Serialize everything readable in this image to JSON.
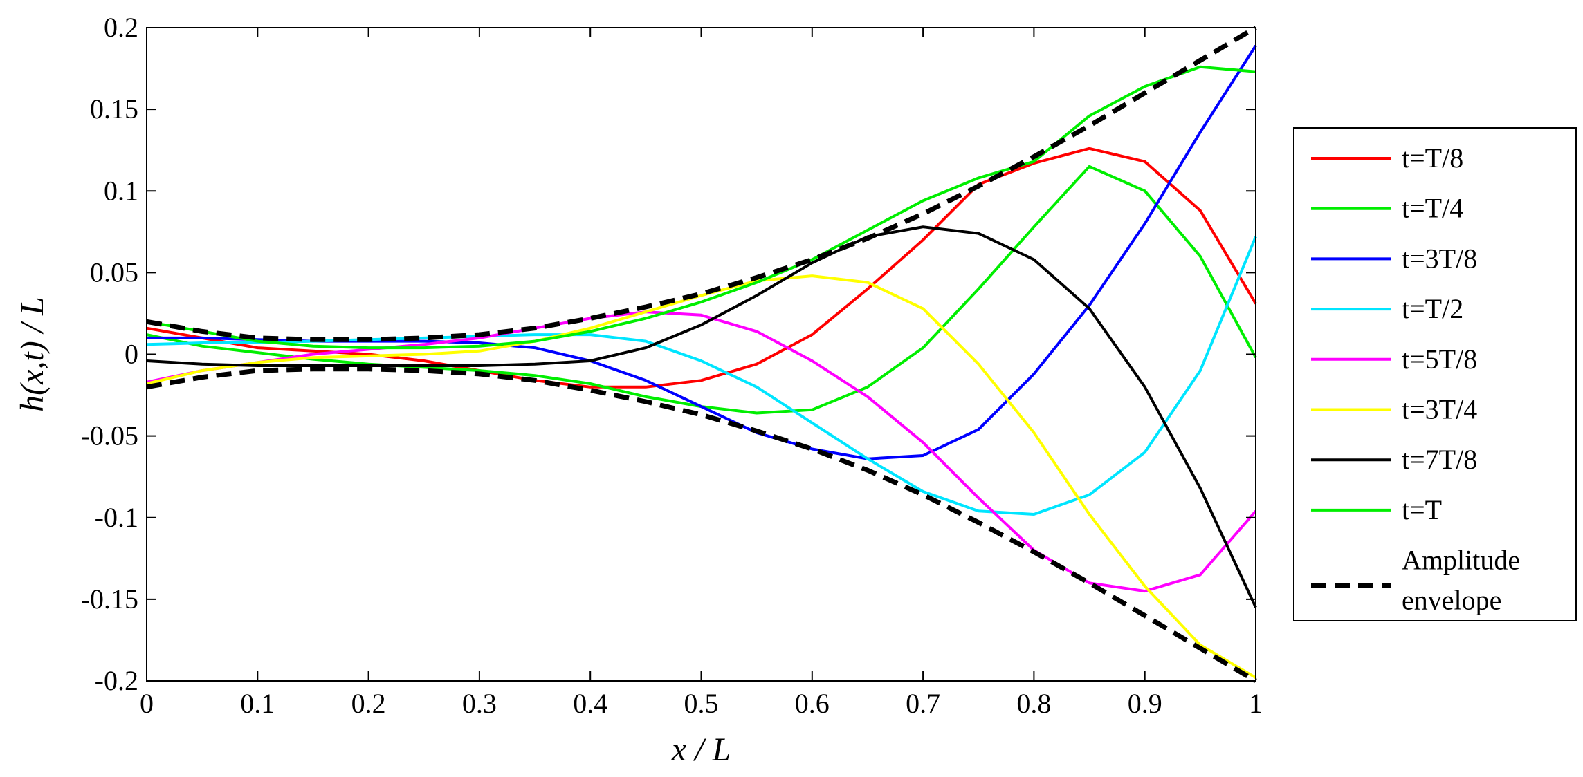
{
  "chart_data": {
    "type": "line",
    "title": "",
    "xlabel": "x / L",
    "ylabel": "h(x,t) / L",
    "xlim": [
      0,
      1
    ],
    "ylim": [
      -0.2,
      0.2
    ],
    "xticks": [
      "0",
      "0.1",
      "0.2",
      "0.3",
      "0.4",
      "0.5",
      "0.6",
      "0.7",
      "0.8",
      "0.9",
      "1"
    ],
    "yticks": [
      "-0.2",
      "-0.15",
      "-0.1",
      "-0.05",
      "0",
      "0.05",
      "0.1",
      "0.15",
      "0.2"
    ],
    "grid": false,
    "legend_position": "right-outside",
    "x": [
      0,
      0.05,
      0.1,
      0.15,
      0.2,
      0.25,
      0.3,
      0.35,
      0.4,
      0.45,
      0.5,
      0.55,
      0.6,
      0.65,
      0.7,
      0.75,
      0.8,
      0.85,
      0.9,
      0.95,
      1.0
    ],
    "series": [
      {
        "name": "t=T/8",
        "color": "#ff0000",
        "style": "solid",
        "values": [
          0.016,
          0.01,
          0.004,
          0.002,
          0.0,
          -0.004,
          -0.01,
          -0.016,
          -0.02,
          -0.02,
          -0.016,
          -0.006,
          0.012,
          0.04,
          0.07,
          0.104,
          0.117,
          0.126,
          0.118,
          0.088,
          0.031
        ]
      },
      {
        "name": "t=T/4",
        "color": "#00ee00",
        "style": "solid",
        "values": [
          0.012,
          0.005,
          0.001,
          -0.003,
          -0.006,
          -0.008,
          -0.01,
          -0.013,
          -0.018,
          -0.026,
          -0.032,
          -0.036,
          -0.034,
          -0.02,
          0.004,
          0.04,
          0.078,
          0.115,
          0.1,
          0.06,
          -0.002
        ]
      },
      {
        "name": "t=3T/8",
        "color": "#0000ff",
        "style": "solid",
        "values": [
          0.01,
          0.01,
          0.009,
          0.008,
          0.008,
          0.008,
          0.007,
          0.004,
          -0.004,
          -0.016,
          -0.032,
          -0.048,
          -0.058,
          -0.064,
          -0.062,
          -0.046,
          -0.012,
          0.03,
          0.08,
          0.136,
          0.189
        ]
      },
      {
        "name": "t=T/2",
        "color": "#00e5ff",
        "style": "solid",
        "values": [
          0.006,
          0.007,
          0.007,
          0.008,
          0.009,
          0.01,
          0.011,
          0.012,
          0.012,
          0.008,
          -0.004,
          -0.02,
          -0.042,
          -0.064,
          -0.084,
          -0.096,
          -0.098,
          -0.086,
          -0.06,
          -0.01,
          0.072
        ]
      },
      {
        "name": "t=5T/8",
        "color": "#ff00ff",
        "style": "solid",
        "values": [
          -0.017,
          -0.01,
          -0.005,
          0.0,
          0.003,
          0.006,
          0.01,
          0.016,
          0.022,
          0.026,
          0.024,
          0.014,
          -0.004,
          -0.026,
          -0.054,
          -0.088,
          -0.12,
          -0.14,
          -0.145,
          -0.135,
          -0.096
        ]
      },
      {
        "name": "t=3T/4",
        "color": "#ffff00",
        "style": "solid",
        "values": [
          -0.018,
          -0.01,
          -0.005,
          -0.002,
          -0.001,
          0.0,
          0.002,
          0.008,
          0.016,
          0.026,
          0.036,
          0.045,
          0.048,
          0.044,
          0.028,
          -0.006,
          -0.048,
          -0.098,
          -0.142,
          -0.178,
          -0.198
        ]
      },
      {
        "name": "t=7T/8",
        "color": "#000000",
        "style": "solid",
        "values": [
          -0.004,
          -0.006,
          -0.007,
          -0.007,
          -0.007,
          -0.007,
          -0.007,
          -0.006,
          -0.004,
          0.004,
          0.018,
          0.036,
          0.056,
          0.072,
          0.078,
          0.074,
          0.058,
          0.028,
          -0.02,
          -0.082,
          -0.155
        ]
      },
      {
        "name": "t=T",
        "color": "#00ee00",
        "style": "solid",
        "values": [
          0.02,
          0.014,
          0.008,
          0.005,
          0.004,
          0.004,
          0.005,
          0.008,
          0.014,
          0.022,
          0.032,
          0.044,
          0.058,
          0.076,
          0.094,
          0.108,
          0.118,
          0.146,
          0.164,
          0.176,
          0.173
        ]
      },
      {
        "name": "Amplitude envelope",
        "name_lines": [
          "Amplitude",
          "envelope"
        ],
        "color": "#000000",
        "style": "dashed",
        "mirrored": true,
        "values": [
          0.02,
          0.014,
          0.01,
          0.009,
          0.009,
          0.01,
          0.012,
          0.016,
          0.022,
          0.029,
          0.037,
          0.047,
          0.058,
          0.071,
          0.086,
          0.103,
          0.121,
          0.14,
          0.16,
          0.18,
          0.2
        ]
      }
    ]
  }
}
